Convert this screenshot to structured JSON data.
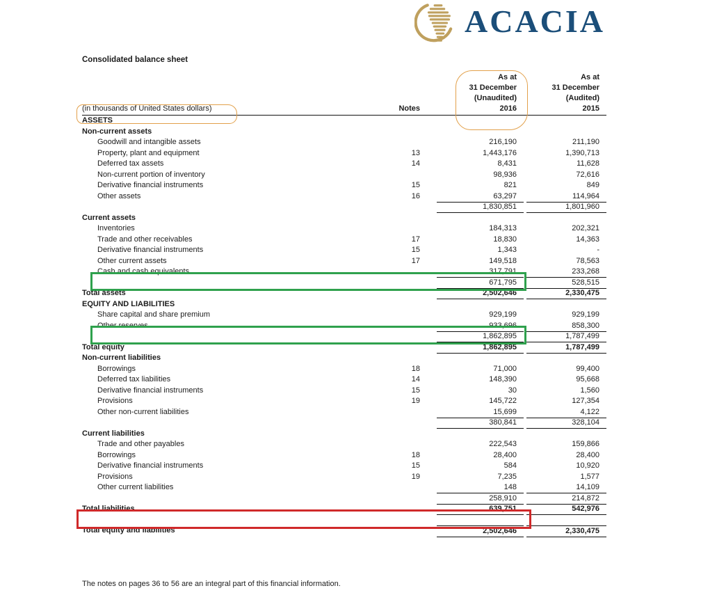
{
  "logo": {
    "name": "ACACIA",
    "brand_color": "#1b4e79",
    "gold_color": "#bfa05e",
    "icon": "acacia-africa-globe-icon"
  },
  "document": {
    "title": "Consolidated balance sheet",
    "footnote": "The notes on pages 36 to 56 are an integral part of this financial information."
  },
  "table": {
    "unit_label": "(in thousands of United States dollars)",
    "notes_header": "Notes",
    "col2016_header": "As at\n31 December\n(Unaudited)\n2016",
    "col2015_header": "As at\n31 December\n(Audited)\n2015",
    "rows": [
      {
        "label": "ASSETS",
        "note": "",
        "v2016": "",
        "v2015": "",
        "style": "section"
      },
      {
        "label": "Non-current assets",
        "note": "",
        "v2016": "",
        "v2015": "",
        "style": "section"
      },
      {
        "label": "Goodwill and intangible assets",
        "note": "",
        "v2016": "216,190",
        "v2015": "211,190",
        "style": "item"
      },
      {
        "label": "Property, plant and equipment",
        "note": "13",
        "v2016": "1,443,176",
        "v2015": "1,390,713",
        "style": "item"
      },
      {
        "label": "Deferred tax assets",
        "note": "14",
        "v2016": "8,431",
        "v2015": "11,628",
        "style": "item"
      },
      {
        "label": "Non-current portion of inventory",
        "note": "",
        "v2016": "98,936",
        "v2015": "72,616",
        "style": "item"
      },
      {
        "label": "Derivative financial instruments",
        "note": "15",
        "v2016": "821",
        "v2015": "849",
        "style": "item"
      },
      {
        "label": "Other assets",
        "note": "16",
        "v2016": "63,297",
        "v2015": "114,964",
        "style": "item",
        "rule": true
      },
      {
        "label": "",
        "note": "",
        "v2016": "1,830,851",
        "v2015": "1,801,960",
        "style": "subtotal",
        "rule": true
      },
      {
        "label": "Current assets",
        "note": "",
        "v2016": "",
        "v2015": "",
        "style": "section"
      },
      {
        "label": "Inventories",
        "note": "",
        "v2016": "184,313",
        "v2015": "202,321",
        "style": "item"
      },
      {
        "label": "Trade and other receivables",
        "note": "17",
        "v2016": "18,830",
        "v2015": "14,363",
        "style": "item"
      },
      {
        "label": "Derivative financial instruments",
        "note": "15",
        "v2016": "1,343",
        "v2015": "-",
        "style": "item"
      },
      {
        "label": "Other current assets",
        "note": "17",
        "v2016": "149,518",
        "v2015": "78,563",
        "style": "item"
      },
      {
        "label": "Cash and cash equivalents",
        "note": "",
        "v2016": "317,791",
        "v2015": "233,268",
        "style": "item",
        "rule": true
      },
      {
        "label": "",
        "note": "",
        "v2016": "671,795",
        "v2015": "528,515",
        "style": "subtotal",
        "rule": true
      },
      {
        "label": "Total assets",
        "note": "",
        "v2016": "2,502,646",
        "v2015": "2,330,475",
        "style": "total",
        "rule": true
      },
      {
        "label": "EQUITY AND LIABILITIES",
        "note": "",
        "v2016": "",
        "v2015": "",
        "style": "section"
      },
      {
        "label": "Share capital and share premium",
        "note": "",
        "v2016": "929,199",
        "v2015": "929,199",
        "style": "item"
      },
      {
        "label": "Other reserves",
        "note": "",
        "v2016": "933,696",
        "v2015": "858,300",
        "style": "item",
        "rule": true
      },
      {
        "label": "",
        "note": "",
        "v2016": "1,862,895",
        "v2015": "1,787,499",
        "style": "subtotal",
        "rule": true
      },
      {
        "label": "Total equity",
        "note": "",
        "v2016": "1,862,895",
        "v2015": "1,787,499",
        "style": "total",
        "rule": true
      },
      {
        "label": "Non-current liabilities",
        "note": "",
        "v2016": "",
        "v2015": "",
        "style": "section"
      },
      {
        "label": "Borrowings",
        "note": "18",
        "v2016": "71,000",
        "v2015": "99,400",
        "style": "item"
      },
      {
        "label": "Deferred tax liabilities",
        "note": "14",
        "v2016": "148,390",
        "v2015": "95,668",
        "style": "item"
      },
      {
        "label": "Derivative financial instruments",
        "note": "15",
        "v2016": "30",
        "v2015": "1,560",
        "style": "item"
      },
      {
        "label": "Provisions",
        "note": "19",
        "v2016": "145,722",
        "v2015": "127,354",
        "style": "item"
      },
      {
        "label": "Other non-current liabilities",
        "note": "",
        "v2016": "15,699",
        "v2015": "4,122",
        "style": "item",
        "rule": true
      },
      {
        "label": "",
        "note": "",
        "v2016": "380,841",
        "v2015": "328,104",
        "style": "subtotal",
        "rule": true
      },
      {
        "label": "Current liabilities",
        "note": "",
        "v2016": "",
        "v2015": "",
        "style": "section"
      },
      {
        "label": "Trade and other payables",
        "note": "",
        "v2016": "222,543",
        "v2015": "159,866",
        "style": "item"
      },
      {
        "label": "Borrowings",
        "note": "18",
        "v2016": "28,400",
        "v2015": "28,400",
        "style": "item"
      },
      {
        "label": "Derivative financial instruments",
        "note": "15",
        "v2016": "584",
        "v2015": "10,920",
        "style": "item"
      },
      {
        "label": "Provisions",
        "note": "19",
        "v2016": "7,235",
        "v2015": "1,577",
        "style": "item"
      },
      {
        "label": "Other current liabilities",
        "note": "",
        "v2016": "148",
        "v2015": "14,109",
        "style": "item",
        "rule": true
      },
      {
        "label": "",
        "note": "",
        "v2016": "258,910",
        "v2015": "214,872",
        "style": "subtotal",
        "rule": true
      },
      {
        "label": "Total liabilities",
        "note": "",
        "v2016": "639,751",
        "v2015": "542,976",
        "style": "total",
        "rule": true
      },
      {
        "label": "",
        "note": "",
        "v2016": "",
        "v2015": "",
        "style": "blank"
      },
      {
        "label": "Total equity and liabilities",
        "note": "",
        "v2016": "2,502,646",
        "v2015": "2,330,475",
        "style": "total",
        "rule": true,
        "toprule": true
      }
    ]
  },
  "annotations": {
    "orange_color": "#e2a04a",
    "green_color": "#2fa14d",
    "red_color": "#d0292a",
    "orange_circled": [
      "(in thousands of United States dollars)",
      "As at 31 December (Unaudited) 2016"
    ],
    "green_boxed": [
      "Cash and cash equivalents 317,791",
      "Other reserves 933,696"
    ],
    "red_boxed": [
      "Total liabilities 639,751"
    ]
  }
}
